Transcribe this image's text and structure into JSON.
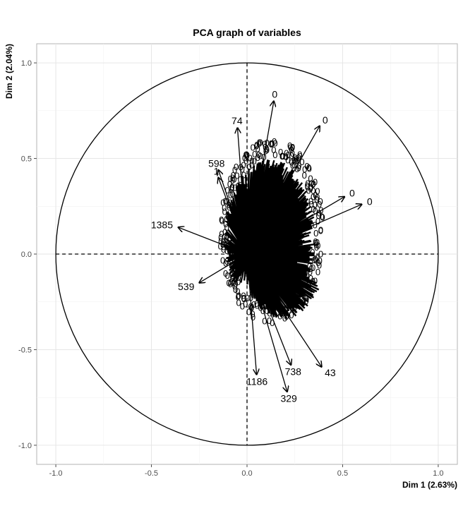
{
  "chart_data": {
    "type": "scatter",
    "title": "PCA graph of variables",
    "xlabel": "Dim 1 (2.63%)",
    "ylabel": "Dim 2 (2.04%)",
    "xlim": [
      -1.1,
      1.1
    ],
    "ylim": [
      -1.1,
      1.1
    ],
    "x_ticks": [
      -1.0,
      -0.5,
      0.0,
      0.5,
      1.0
    ],
    "y_ticks": [
      -1.0,
      -0.5,
      0.0,
      0.5,
      1.0
    ],
    "x_tick_labels": [
      "-1.0",
      "-0.5",
      "0.0",
      "0.5",
      "1.0"
    ],
    "y_tick_labels": [
      "-1.0",
      "-0.5",
      "0.0",
      "0.5",
      "1.0"
    ],
    "grid": true,
    "unit_circle": true,
    "reference_lines": [
      0,
      0
    ],
    "labeled_arrows": [
      {
        "label": "1385",
        "x": -0.36,
        "y": 0.14
      },
      {
        "label": "598",
        "x": -0.15,
        "y": 0.44
      },
      {
        "label": "74",
        "x": -0.05,
        "y": 0.66
      },
      {
        "label": "1",
        "x": -0.15,
        "y": 0.4
      },
      {
        "label": "539",
        "x": -0.25,
        "y": -0.15
      },
      {
        "label": "1186",
        "x": 0.05,
        "y": -0.63
      },
      {
        "label": "329",
        "x": 0.21,
        "y": -0.72
      },
      {
        "label": "738",
        "x": 0.23,
        "y": -0.58
      },
      {
        "label": "43",
        "x": 0.39,
        "y": -0.59
      },
      {
        "label": "0",
        "x": 0.6,
        "y": 0.26
      },
      {
        "label": "0",
        "x": 0.51,
        "y": 0.3
      },
      {
        "label": "0",
        "x": 0.38,
        "y": 0.67
      },
      {
        "label": "0",
        "x": 0.14,
        "y": 0.8
      }
    ]
  }
}
